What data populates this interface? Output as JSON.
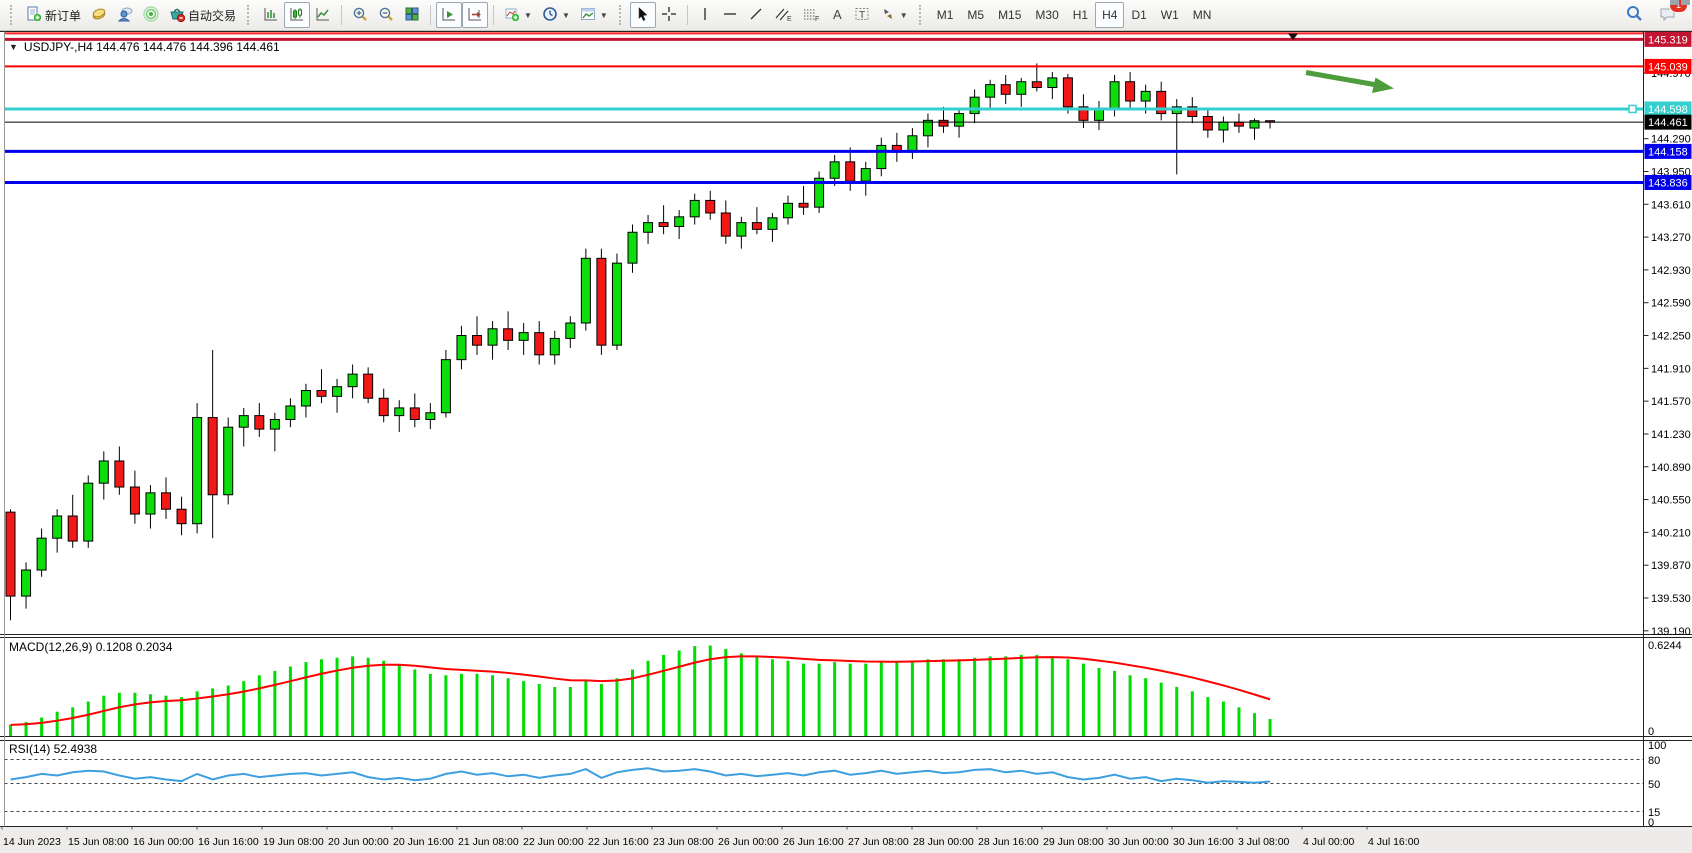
{
  "toolbar": {
    "new_order_label": "新订单",
    "auto_trading_label": "自动交易",
    "timeframes": [
      "M1",
      "M5",
      "M15",
      "M30",
      "H1",
      "H4",
      "D1",
      "W1",
      "MN"
    ],
    "active_timeframe": "H4",
    "notification_badge": "1"
  },
  "chart": {
    "title": "USDJPY-,H4  144.476 144.476 144.396 144.461",
    "symbol": "USDJPY-",
    "timeframe": "H4",
    "ohlc": {
      "open": "144.476",
      "high": "144.476",
      "low": "144.396",
      "close": "144.461"
    },
    "macd_label": "MACD(12,26,9) 0.1208 0.2034",
    "rsi_label": "RSI(14) 52.4938"
  },
  "chart_data": {
    "type": "candlestick",
    "symbol": "USDJPY",
    "timeframe": "H4",
    "title": "USDJPY-,H4",
    "ylim": [
      139.16,
      145.39
    ],
    "grid": false,
    "colors": {
      "bull": "#0ddd0d",
      "bear": "#f21818",
      "outline": "#000000",
      "macd_hist": "#00dd00",
      "macd_signal": "#ff0000",
      "rsi_line": "#3d9fe0",
      "level_red": "#ff0000",
      "level_crimson": "#c31432",
      "level_cyan": "#35cfcf",
      "level_blue": "#0000ee",
      "current_price": "#000000",
      "arrow_green": "#4e9d3d"
    },
    "candles_ohlc": [
      [
        140.42,
        140.45,
        139.3,
        139.55
      ],
      [
        139.55,
        139.9,
        139.42,
        139.82
      ],
      [
        139.82,
        140.25,
        139.75,
        140.15
      ],
      [
        140.15,
        140.45,
        140.0,
        140.38
      ],
      [
        140.38,
        140.6,
        140.05,
        140.12
      ],
      [
        140.12,
        140.8,
        140.05,
        140.72
      ],
      [
        140.72,
        141.05,
        140.55,
        140.95
      ],
      [
        140.95,
        141.1,
        140.6,
        140.68
      ],
      [
        140.68,
        140.85,
        140.3,
        140.4
      ],
      [
        140.4,
        140.7,
        140.25,
        140.62
      ],
      [
        140.62,
        140.78,
        140.35,
        140.45
      ],
      [
        140.45,
        140.58,
        140.18,
        140.3
      ],
      [
        140.3,
        141.55,
        140.2,
        141.4
      ],
      [
        141.4,
        142.1,
        140.15,
        140.6
      ],
      [
        140.6,
        141.4,
        140.5,
        141.3
      ],
      [
        141.3,
        141.5,
        141.1,
        141.42
      ],
      [
        141.42,
        141.55,
        141.2,
        141.28
      ],
      [
        141.28,
        141.45,
        141.05,
        141.38
      ],
      [
        141.38,
        141.6,
        141.3,
        141.52
      ],
      [
        141.52,
        141.75,
        141.4,
        141.68
      ],
      [
        141.68,
        141.9,
        141.55,
        141.62
      ],
      [
        141.62,
        141.8,
        141.45,
        141.72
      ],
      [
        141.72,
        141.95,
        141.6,
        141.85
      ],
      [
        141.85,
        141.92,
        141.55,
        141.6
      ],
      [
        141.6,
        141.7,
        141.35,
        141.42
      ],
      [
        141.42,
        141.58,
        141.25,
        141.5
      ],
      [
        141.5,
        141.65,
        141.3,
        141.38
      ],
      [
        141.38,
        141.55,
        141.28,
        141.45
      ],
      [
        141.45,
        142.1,
        141.4,
        142.0
      ],
      [
        142.0,
        142.35,
        141.9,
        142.25
      ],
      [
        142.25,
        142.45,
        142.05,
        142.15
      ],
      [
        142.15,
        142.4,
        142.0,
        142.32
      ],
      [
        142.32,
        142.5,
        142.1,
        142.2
      ],
      [
        142.2,
        142.38,
        142.05,
        142.28
      ],
      [
        142.28,
        142.4,
        141.95,
        142.05
      ],
      [
        142.05,
        142.3,
        141.95,
        142.22
      ],
      [
        142.22,
        142.45,
        142.12,
        142.38
      ],
      [
        142.38,
        143.15,
        142.3,
        143.05
      ],
      [
        143.05,
        143.15,
        142.05,
        142.15
      ],
      [
        142.15,
        143.1,
        142.1,
        143.0
      ],
      [
        143.0,
        143.4,
        142.9,
        143.32
      ],
      [
        143.32,
        143.5,
        143.2,
        143.42
      ],
      [
        143.42,
        143.6,
        143.3,
        143.38
      ],
      [
        143.38,
        143.55,
        143.25,
        143.48
      ],
      [
        143.48,
        143.72,
        143.4,
        143.65
      ],
      [
        143.65,
        143.75,
        143.45,
        143.52
      ],
      [
        143.52,
        143.65,
        143.2,
        143.28
      ],
      [
        143.28,
        143.48,
        143.15,
        143.42
      ],
      [
        143.42,
        143.58,
        143.3,
        143.35
      ],
      [
        143.35,
        143.52,
        143.22,
        143.47
      ],
      [
        143.47,
        143.7,
        143.4,
        143.62
      ],
      [
        143.62,
        143.8,
        143.5,
        143.58
      ],
      [
        143.58,
        143.95,
        143.52,
        143.88
      ],
      [
        143.88,
        144.12,
        143.8,
        144.05
      ],
      [
        144.05,
        144.2,
        143.75,
        143.85
      ],
      [
        143.85,
        144.05,
        143.7,
        143.98
      ],
      [
        143.98,
        144.3,
        143.9,
        144.22
      ],
      [
        144.22,
        144.35,
        144.05,
        144.15
      ],
      [
        144.15,
        144.4,
        144.08,
        144.32
      ],
      [
        144.32,
        144.55,
        144.2,
        144.48
      ],
      [
        144.48,
        144.62,
        144.35,
        144.42
      ],
      [
        144.42,
        144.6,
        144.3,
        144.55
      ],
      [
        144.55,
        144.8,
        144.45,
        144.72
      ],
      [
        144.72,
        144.9,
        144.6,
        144.85
      ],
      [
        144.85,
        144.95,
        144.65,
        144.75
      ],
      [
        144.75,
        144.92,
        144.62,
        144.88
      ],
      [
        144.88,
        145.07,
        144.78,
        144.82
      ],
      [
        144.82,
        144.98,
        144.7,
        144.92
      ],
      [
        144.92,
        144.96,
        144.55,
        144.62
      ],
      [
        144.62,
        144.75,
        144.4,
        144.48
      ],
      [
        144.48,
        144.68,
        144.38,
        144.6
      ],
      [
        144.6,
        144.95,
        144.52,
        144.88
      ],
      [
        144.88,
        144.98,
        144.6,
        144.68
      ],
      [
        144.68,
        144.85,
        144.55,
        144.78
      ],
      [
        144.78,
        144.88,
        144.48,
        144.55
      ],
      [
        144.55,
        144.7,
        143.92,
        144.62
      ],
      [
        144.62,
        144.72,
        144.45,
        144.52
      ],
      [
        144.52,
        144.6,
        144.3,
        144.38
      ],
      [
        144.38,
        144.52,
        144.25,
        144.46
      ],
      [
        144.46,
        144.55,
        144.35,
        144.42
      ],
      [
        144.4,
        144.5,
        144.28,
        144.476
      ],
      [
        144.476,
        144.476,
        144.396,
        144.461
      ]
    ],
    "macd": {
      "label": "MACD(12,26,9)",
      "current_macd": 0.1208,
      "current_signal": 0.2034,
      "axis_labels": [
        "0.6244",
        "0"
      ],
      "max": 0.6244,
      "values": [
        0.08,
        0.1,
        0.13,
        0.17,
        0.2,
        0.24,
        0.28,
        0.3,
        0.3,
        0.29,
        0.28,
        0.27,
        0.31,
        0.33,
        0.35,
        0.38,
        0.42,
        0.45,
        0.48,
        0.51,
        0.53,
        0.54,
        0.55,
        0.54,
        0.52,
        0.49,
        0.46,
        0.43,
        0.42,
        0.43,
        0.43,
        0.42,
        0.4,
        0.38,
        0.36,
        0.34,
        0.34,
        0.38,
        0.36,
        0.4,
        0.46,
        0.52,
        0.56,
        0.59,
        0.62,
        0.6244,
        0.6,
        0.57,
        0.55,
        0.53,
        0.52,
        0.5,
        0.5,
        0.51,
        0.5,
        0.5,
        0.51,
        0.51,
        0.52,
        0.53,
        0.53,
        0.53,
        0.54,
        0.55,
        0.55,
        0.56,
        0.56,
        0.55,
        0.53,
        0.5,
        0.47,
        0.45,
        0.42,
        0.4,
        0.37,
        0.34,
        0.31,
        0.27,
        0.24,
        0.2,
        0.16,
        0.12
      ]
    },
    "rsi": {
      "label": "RSI(14)",
      "current": 52.4938,
      "range": [
        0,
        100
      ],
      "axis_labels": [
        "100",
        "80",
        "50",
        "15",
        "0"
      ],
      "dashed_levels": [
        80,
        50,
        15
      ],
      "values": [
        55,
        58,
        62,
        60,
        64,
        66,
        65,
        60,
        56,
        58,
        55,
        53,
        62,
        55,
        60,
        62,
        58,
        60,
        62,
        63,
        60,
        62,
        64,
        58,
        55,
        57,
        54,
        56,
        62,
        65,
        61,
        63,
        59,
        61,
        57,
        60,
        62,
        68,
        57,
        64,
        67,
        69,
        65,
        66,
        68,
        65,
        60,
        62,
        59,
        61,
        63,
        60,
        64,
        66,
        61,
        63,
        66,
        62,
        64,
        66,
        63,
        64,
        67,
        68,
        64,
        66,
        62,
        64,
        58,
        55,
        57,
        61,
        56,
        58,
        53,
        56,
        54,
        51,
        53,
        52,
        51,
        52.4938
      ]
    },
    "price_axis_ticks": [
      "144.970",
      "144.290",
      "143.950",
      "143.610",
      "143.270",
      "142.930",
      "142.590",
      "142.250",
      "141.910",
      "141.570",
      "141.230",
      "140.890",
      "140.550",
      "140.210",
      "139.870",
      "139.530",
      "139.190"
    ],
    "levels": [
      {
        "price": 145.381,
        "color": "#ff2020",
        "width": 2,
        "label": null
      },
      {
        "price": 145.319,
        "color": "#c31432",
        "width": 3,
        "label": "145.319"
      },
      {
        "price": 145.039,
        "color": "#ff0000",
        "width": 2,
        "label": "145.039"
      },
      {
        "price": 144.598,
        "color": "#35cfcf",
        "width": 3,
        "label": "144.598",
        "handle": true
      },
      {
        "price": 144.461,
        "color": "#000000",
        "width": 1,
        "label": "144.461",
        "current": true
      },
      {
        "price": 144.158,
        "color": "#0000ee",
        "width": 3,
        "label": "144.158"
      },
      {
        "price": 143.836,
        "color": "#0000ee",
        "width": 3,
        "label": "143.836"
      }
    ],
    "time_labels": [
      "14 Jun 2023",
      "15 Jun 08:00",
      "16 Jun 00:00",
      "16 Jun 16:00",
      "19 Jun 08:00",
      "20 Jun 00:00",
      "20 Jun 16:00",
      "21 Jun 08:00",
      "22 Jun 00:00",
      "22 Jun 16:00",
      "23 Jun 08:00",
      "26 Jun 00:00",
      "26 Jun 16:00",
      "27 Jun 08:00",
      "28 Jun 00:00",
      "28 Jun 16:00",
      "29 Jun 08:00",
      "30 Jun 00:00",
      "30 Jun 16:00",
      "3 Jul 08:00",
      "4 Jul 00:00",
      "4 Jul 16:00"
    ],
    "annotations": [
      {
        "type": "trend-arrow",
        "color": "#4e9d3d",
        "direction": "right-down"
      }
    ]
  }
}
